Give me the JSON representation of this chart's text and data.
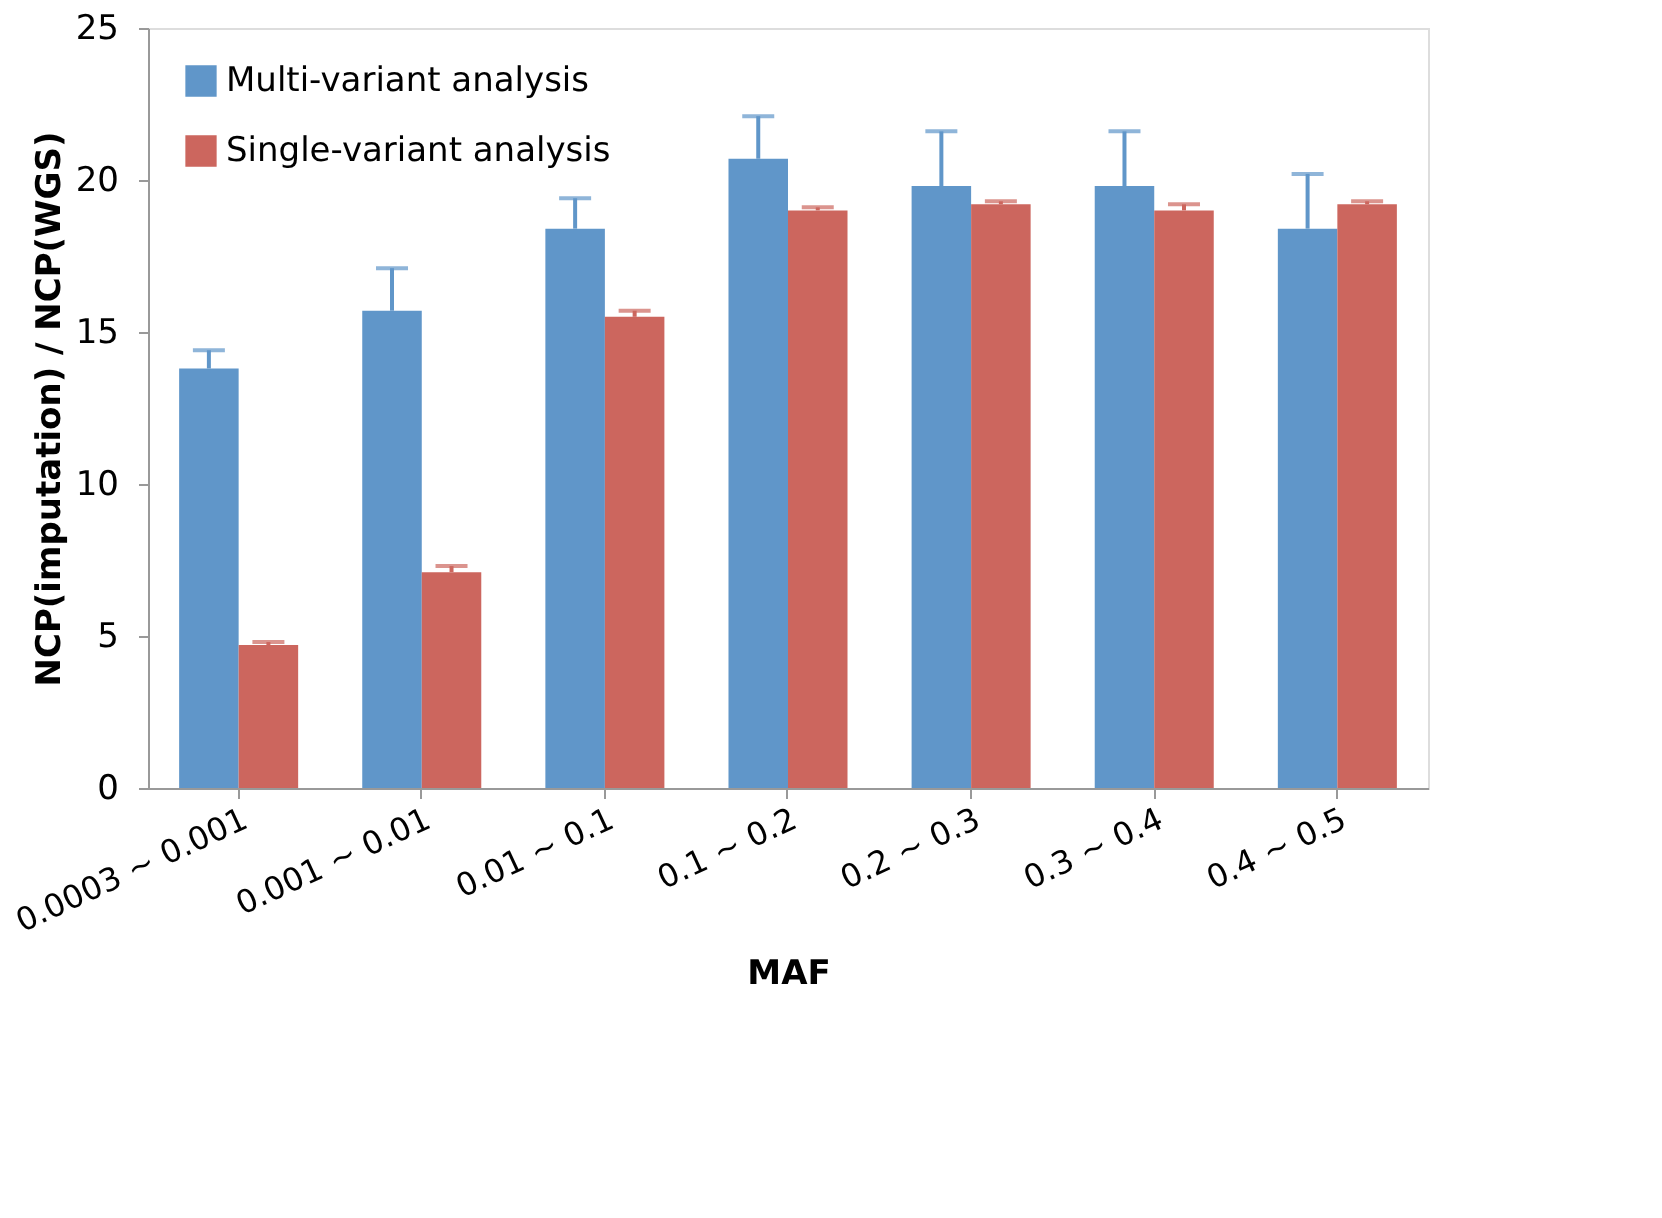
{
  "chart_data": {
    "type": "bar",
    "xlabel": "MAF",
    "ylabel": "NCP(imputation) / NCP(WGS)",
    "categories": [
      "0.0003 ~ 0.001",
      "0.001 ~ 0.01",
      "0.01 ~ 0.1",
      "0.1 ~ 0.2",
      "0.2 ~ 0.3",
      "0.3 ~ 0.4",
      "0.4 ~ 0.5"
    ],
    "series": [
      {
        "name": "Multi-variant analysis",
        "color": "#6096c9",
        "values": [
          13.8,
          15.7,
          18.4,
          20.7,
          19.8,
          19.8,
          18.4
        ],
        "errors": [
          [
            13.8,
            14.4
          ],
          [
            15.7,
            17.1
          ],
          [
            18.4,
            19.4
          ],
          [
            20.7,
            22.1
          ],
          [
            19.8,
            21.6
          ],
          [
            19.8,
            21.6
          ],
          [
            18.4,
            20.2
          ]
        ]
      },
      {
        "name": "Single-variant analysis",
        "color": "#cc665e",
        "values": [
          4.7,
          7.1,
          15.5,
          19.0,
          19.2,
          19.0,
          19.2
        ],
        "errors": [
          [
            4.7,
            4.8
          ],
          [
            7.1,
            7.3
          ],
          [
            15.5,
            15.7
          ],
          [
            19.0,
            19.1
          ],
          [
            19.2,
            19.3
          ],
          [
            19.0,
            19.2
          ],
          [
            19.2,
            19.3
          ]
        ]
      }
    ],
    "ylim": [
      0,
      25
    ],
    "yticks": [
      0,
      5,
      10,
      15,
      20,
      25
    ],
    "grid": false,
    "legend": "top left"
  }
}
